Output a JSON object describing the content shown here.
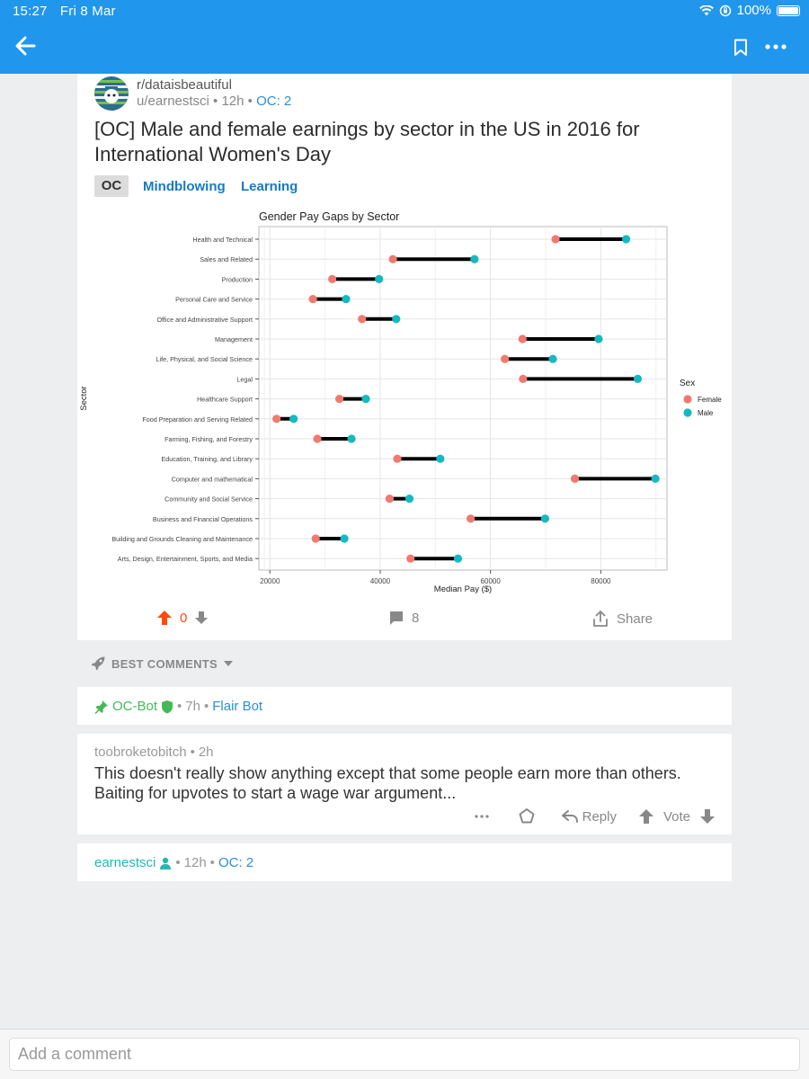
{
  "status_bar": {
    "time": "15:27",
    "date": "Fri 8 Mar",
    "battery": "100%"
  },
  "nav": {
    "back_icon": "arrow-left-icon",
    "bookmark_icon": "bookmark-icon",
    "more_icon": "more-horizontal-icon"
  },
  "post": {
    "subreddit": "r/dataisbeautiful",
    "author": "u/earnestsci",
    "age": "12h",
    "oc_tag": "OC: 2",
    "title": "[OC] Male and female earnings by sector in the US in 2016 for International Women's Day",
    "flairs": [
      "OC",
      "Mindblowing",
      "Learning"
    ],
    "score": "0",
    "comments": "8",
    "share_label": "Share"
  },
  "chart_data": {
    "type": "dumbbell",
    "title": "Gender Pay Gaps by Sector",
    "xlabel": "Median Pay ($)",
    "ylabel": "Sector",
    "xlim": [
      18000,
      92000
    ],
    "xticks": [
      20000,
      40000,
      60000,
      80000
    ],
    "legend": {
      "title": "Sex",
      "placement": "right",
      "entries": [
        {
          "name": "Female",
          "color": "#f07a70"
        },
        {
          "name": "Male",
          "color": "#16b8c2"
        }
      ]
    },
    "grid": true,
    "categories": [
      "Health and Technical",
      "Sales and Related",
      "Production",
      "Personal Care and Service",
      "Office and Administrative Support",
      "Management",
      "Life, Physical, and Social Science",
      "Legal",
      "Healthcare Support",
      "Food Preparation and Serving Related",
      "Farming, Fishing, and Forestry",
      "Education, Training, and Library",
      "Computer and mathematical",
      "Community and Social Service",
      "Business and Financial Operations",
      "Building and Grounds Cleaning and Maintenance",
      "Arts, Design, Entertainment, Sports, and Media"
    ],
    "series": [
      {
        "name": "Female",
        "values": [
          71800,
          42300,
          31300,
          27800,
          36700,
          65800,
          62600,
          65900,
          32600,
          21200,
          28600,
          43100,
          75300,
          41700,
          56400,
          28300,
          45500
        ]
      },
      {
        "name": "Male",
        "values": [
          84600,
          57100,
          39800,
          33800,
          42900,
          79600,
          71300,
          86700,
          37400,
          24300,
          34800,
          50900,
          89900,
          45300,
          69900,
          33500,
          54100
        ]
      }
    ]
  },
  "comments": {
    "sort_label": "BEST COMMENTS",
    "bot": {
      "author": "OC-Bot",
      "age": "7h",
      "flair": "Flair Bot"
    },
    "user": {
      "author": "toobroketobitch",
      "age": "2h",
      "body": "This doesn't really show anything except that some people earn more than others. Baiting for upvotes to start a wage war argument...",
      "reply_label": "Reply",
      "vote_label": "Vote"
    },
    "op": {
      "author": "earnestsci",
      "age": "12h",
      "oc_tag": "OC: 2"
    }
  },
  "composer": {
    "placeholder": "Add a comment"
  }
}
